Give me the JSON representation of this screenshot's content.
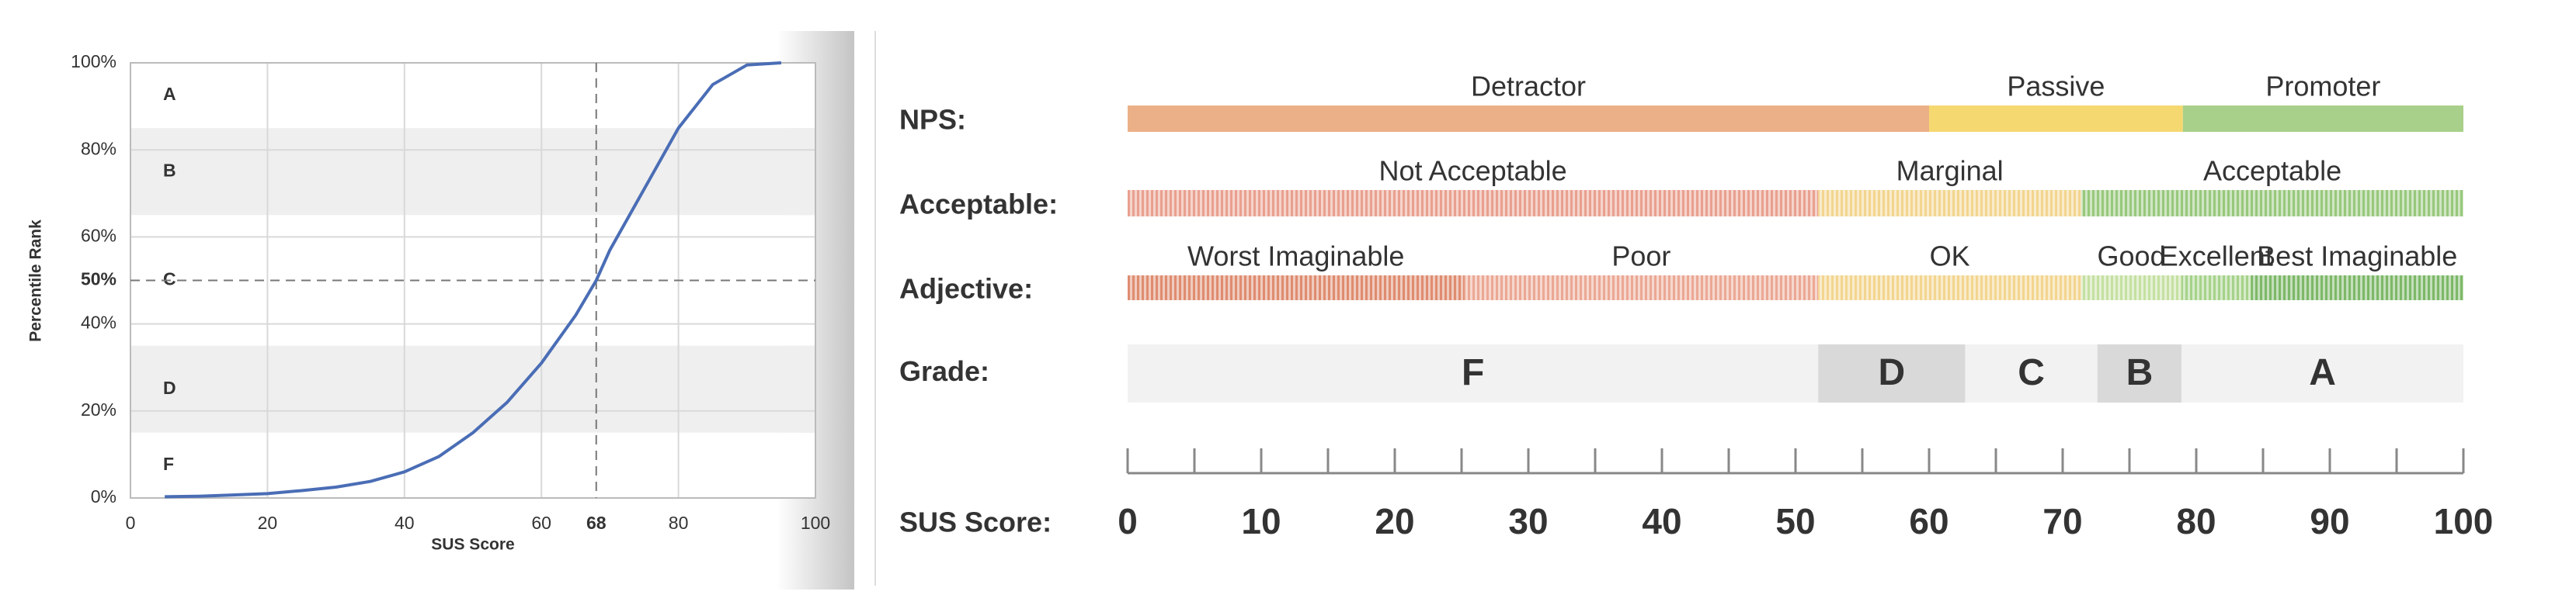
{
  "chart_data": [
    {
      "type": "line",
      "x": [
        5,
        10,
        15,
        20,
        25,
        30,
        35,
        40,
        45,
        50,
        55,
        60,
        65,
        68,
        70,
        75,
        80,
        85,
        90,
        95
      ],
      "values": [
        0.3,
        0.4,
        0.7,
        1,
        1.7,
        2.5,
        3.8,
        6,
        9.5,
        15,
        22,
        31,
        42,
        50,
        57,
        71,
        85,
        95,
        99.5,
        100
      ],
      "color": "#4a6db5",
      "xlabel": "SUS Score",
      "ylabel": "Percentile Rank",
      "xlim": [
        0,
        100
      ],
      "ylim": [
        0,
        100
      ],
      "xticks": [
        0,
        20,
        40,
        60,
        68,
        80,
        100
      ],
      "yticks": [
        {
          "value": 0,
          "label": "0%"
        },
        {
          "value": 20,
          "label": "20%"
        },
        {
          "value": 40,
          "label": "40%"
        },
        {
          "value": 50,
          "label": "50%"
        },
        {
          "value": 60,
          "label": "60%"
        },
        {
          "value": 80,
          "label": "80%"
        },
        {
          "value": 100,
          "label": "100%"
        }
      ],
      "reference": {
        "x": 68,
        "y": 50
      },
      "grid": true,
      "bands": [
        {
          "label": "A",
          "from": 85,
          "to": 100,
          "shaded": false
        },
        {
          "label": "B",
          "from": 65,
          "to": 85,
          "shaded": true
        },
        {
          "label": "C",
          "from": 35,
          "to": 65,
          "shaded": false
        },
        {
          "label": "D",
          "from": 15,
          "to": 35,
          "shaded": true
        },
        {
          "label": "F",
          "from": 0,
          "to": 15,
          "shaded": false
        }
      ]
    },
    {
      "type": "scale",
      "axis_label": "SUS Score:",
      "xlim": [
        0,
        100
      ],
      "xticks": [
        0,
        10,
        20,
        30,
        40,
        50,
        60,
        70,
        80,
        90,
        100
      ],
      "minor_ticks": [
        5,
        15,
        25,
        35,
        45,
        55,
        65,
        75,
        85,
        95
      ],
      "rows": [
        {
          "label": "NPS:",
          "style": "solid",
          "segments": [
            {
              "name": "Detractor",
              "from": 0,
              "to": 60,
              "color": "#ebb088"
            },
            {
              "name": "Passive",
              "from": 60,
              "to": 79,
              "color": "#f6d870"
            },
            {
              "name": "Promoter",
              "from": 79,
              "to": 100,
              "color": "#a8d08a"
            }
          ]
        },
        {
          "label": "Acceptable:",
          "style": "hatched",
          "segments": [
            {
              "name": "Not Acceptable",
              "from": 0,
              "to": 51.7,
              "color": "#e9a08f"
            },
            {
              "name": "Marginal",
              "from": 51.7,
              "to": 71.4,
              "color": "#f3d58f"
            },
            {
              "name": "Acceptable",
              "from": 71.4,
              "to": 100,
              "color": "#98c87c"
            }
          ]
        },
        {
          "label": "Adjective:",
          "style": "hatched",
          "segments": [
            {
              "name": "Worst Imaginable",
              "from": 0,
              "to": 25.2,
              "color": "#df8c70"
            },
            {
              "name": "Poor",
              "from": 25.2,
              "to": 51.7,
              "color": "#eba894"
            },
            {
              "name": "OK",
              "from": 51.7,
              "to": 71.4,
              "color": "#f3d58f"
            },
            {
              "name": "Good",
              "from": 71.4,
              "to": 78.9,
              "color": "#c5e0a2"
            },
            {
              "name": "Excellent",
              "from": 78.9,
              "to": 84.1,
              "color": "#a6d28a"
            },
            {
              "name": "Best Imaginable",
              "from": 84.1,
              "to": 100,
              "color": "#7db868"
            }
          ]
        },
        {
          "label": "Grade:",
          "style": "grade",
          "segments": [
            {
              "name": "F",
              "from": 0,
              "to": 51.7,
              "color": "#f2f2f2"
            },
            {
              "name": "D",
              "from": 51.7,
              "to": 62.7,
              "color": "#d9d9d9"
            },
            {
              "name": "C",
              "from": 62.7,
              "to": 72.6,
              "color": "#f2f2f2"
            },
            {
              "name": "B",
              "from": 72.6,
              "to": 78.9,
              "color": "#d9d9d9"
            },
            {
              "name": "A",
              "from": 78.9,
              "to": 100,
              "color": "#f2f2f2"
            }
          ]
        }
      ]
    }
  ]
}
